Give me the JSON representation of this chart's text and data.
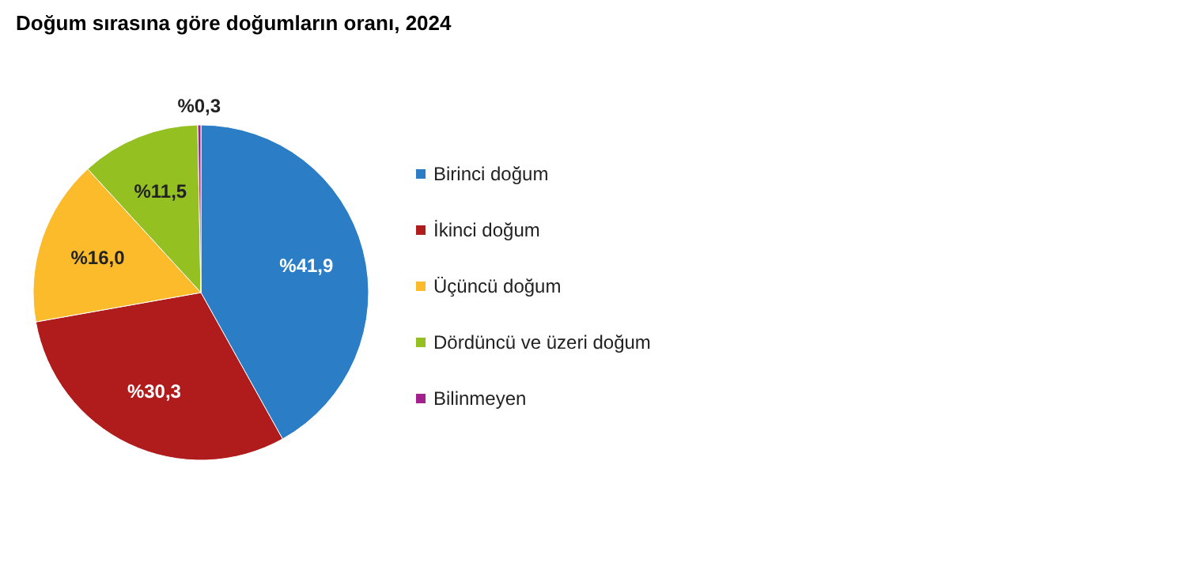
{
  "chart_data": {
    "type": "pie",
    "title": "Doğum sırasına göre doğumların oranı, 2024",
    "categories": [
      "Birinci doğum",
      "İkinci doğum",
      "Üçüncü doğum",
      "Dördüncü ve üzeri doğum",
      "Bilinmeyen"
    ],
    "values": [
      41.9,
      30.3,
      16.0,
      11.5,
      0.3
    ],
    "value_labels": [
      "%41,9",
      "%30,3",
      "%16,0",
      "%11,5",
      "%0,3"
    ],
    "colors": [
      "#2b7ec6",
      "#b01b1b",
      "#fbbb2a",
      "#94c022",
      "#a3208c"
    ],
    "legend": "right"
  }
}
